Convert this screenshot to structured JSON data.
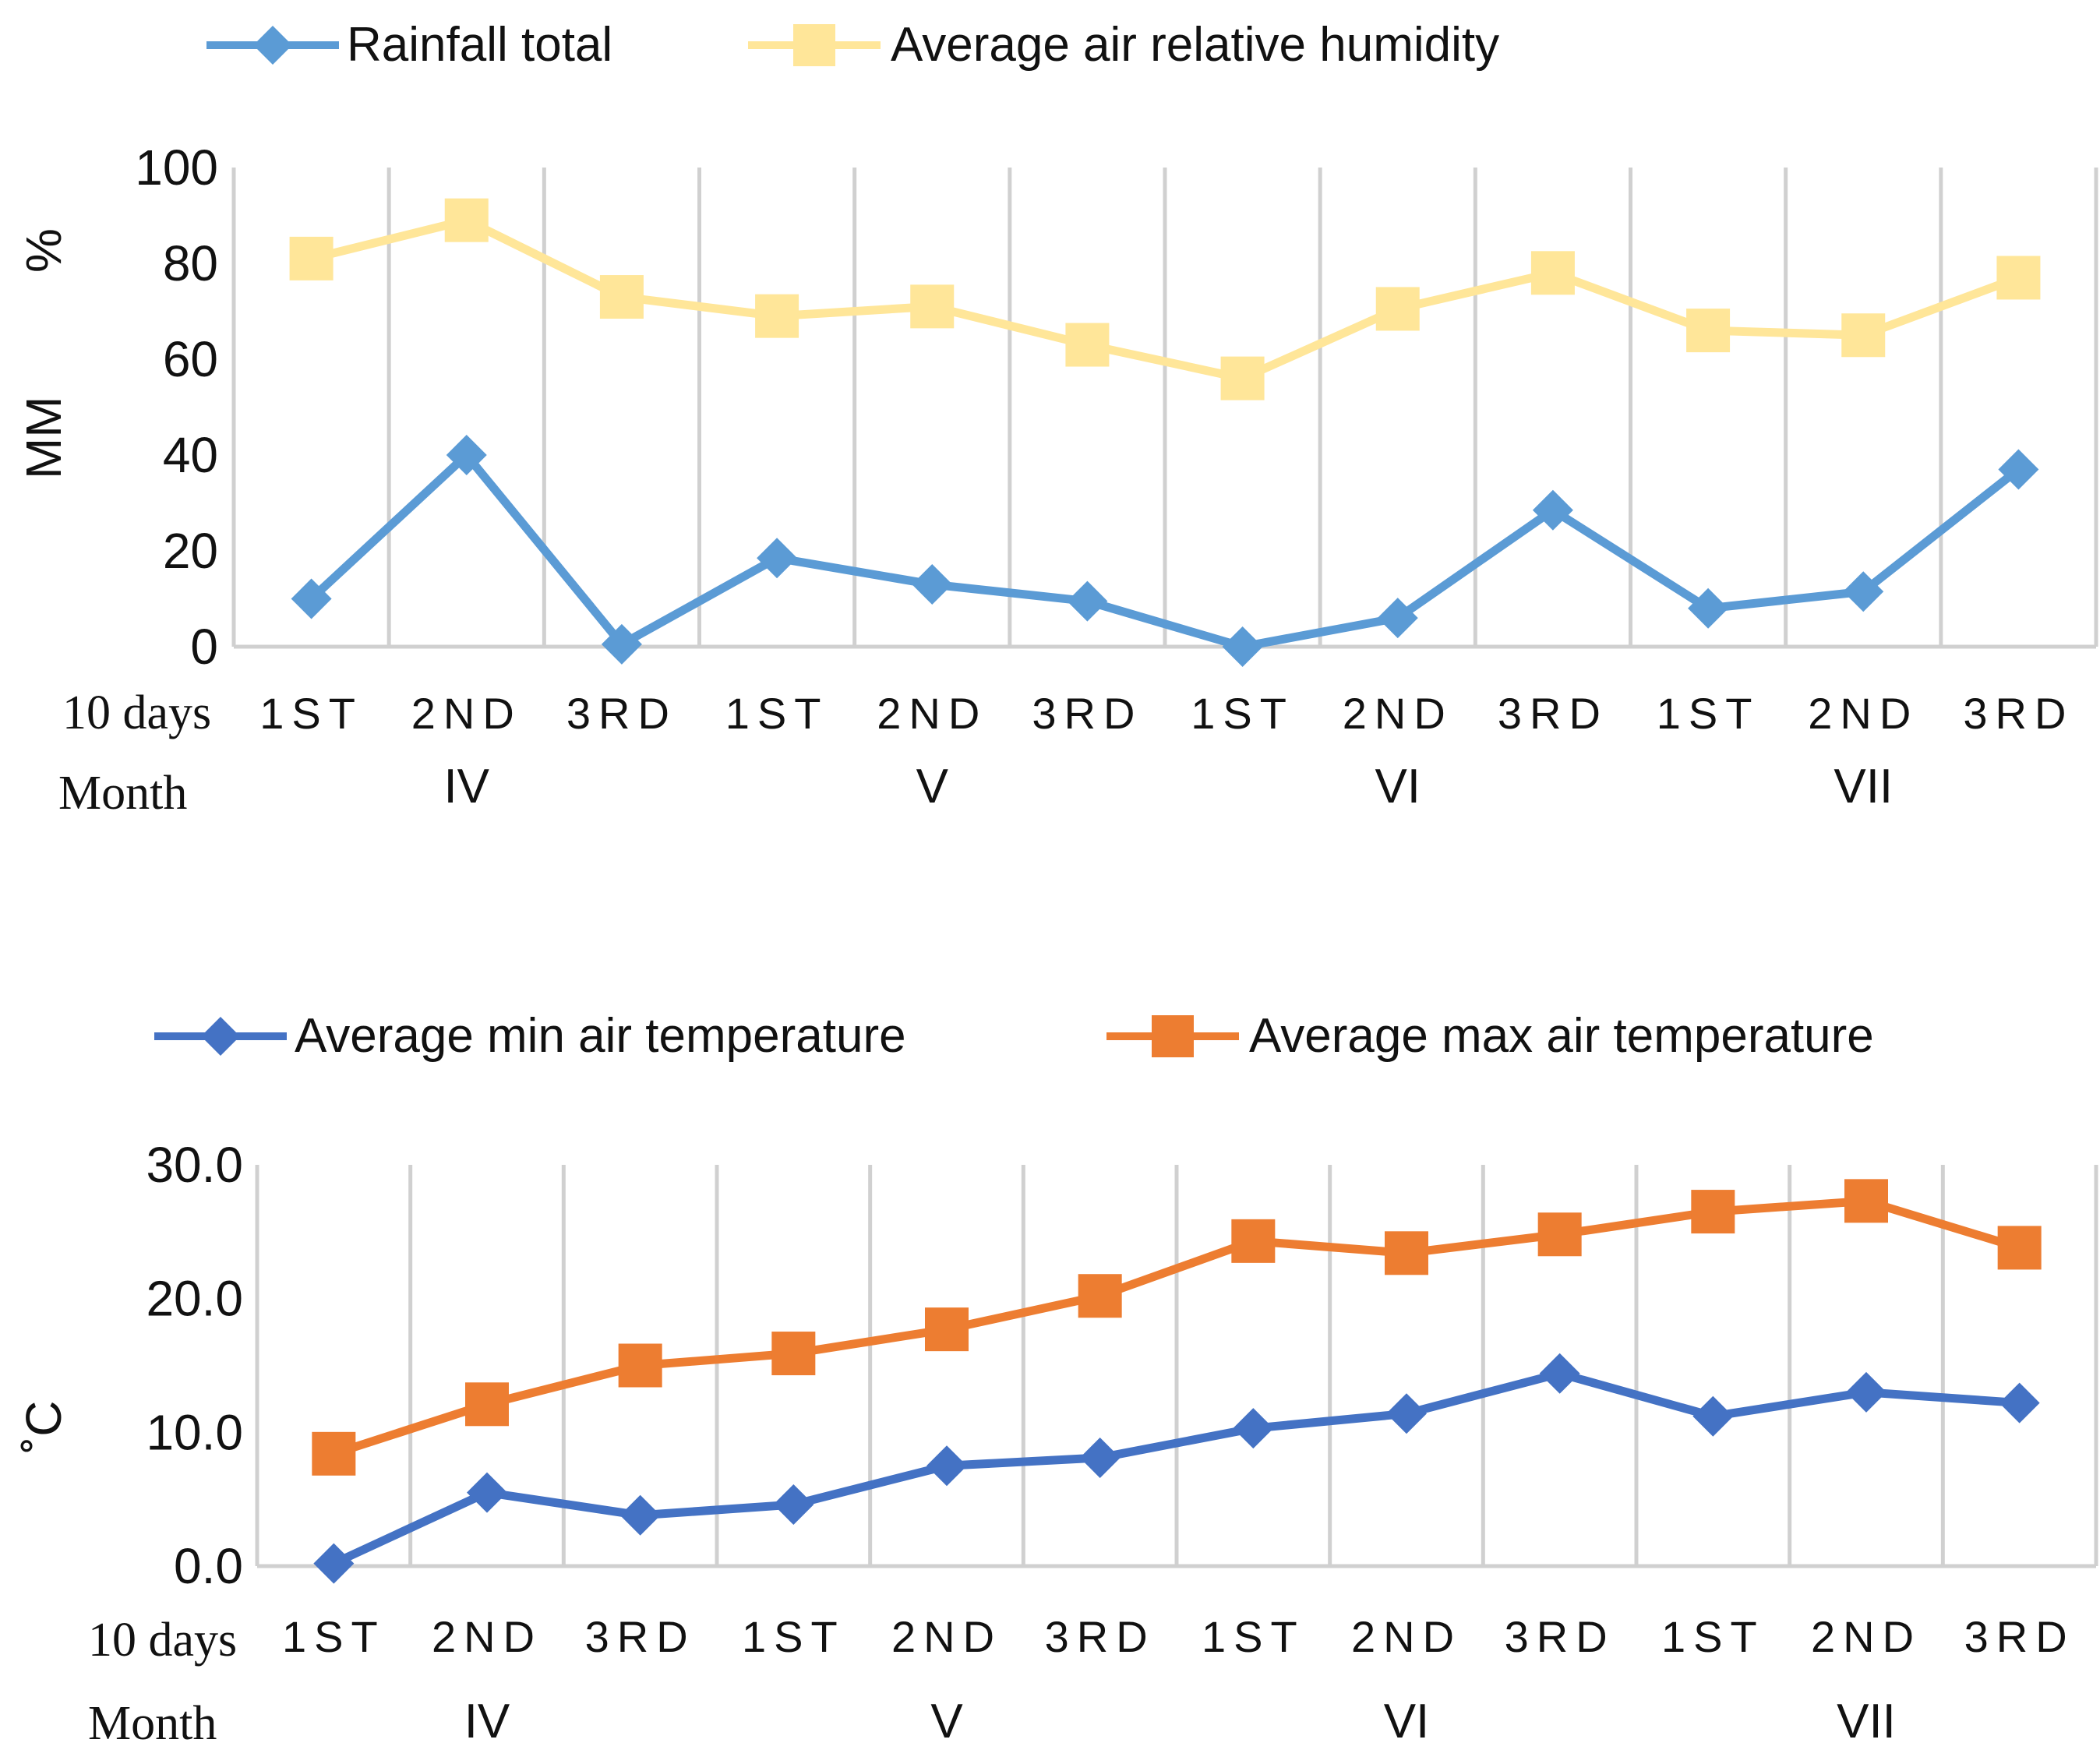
{
  "chart_data": [
    {
      "type": "line",
      "title": "",
      "categories": [
        "1ST",
        "2ND",
        "3RD",
        "1ST",
        "2ND",
        "3RD",
        "1ST",
        "2ND",
        "3RD",
        "1ST",
        "2ND",
        "3RD"
      ],
      "month_groups": [
        "IV",
        "V",
        "VI",
        "VII"
      ],
      "row_labels": {
        "ten_days": "10 days",
        "month": "Month"
      },
      "ylabel_left": "MM",
      "ylabel_right": "%",
      "ylim": [
        0,
        100
      ],
      "yticks": [
        "0",
        "20",
        "40",
        "60",
        "80",
        "100"
      ],
      "legend": "top",
      "grid": true,
      "series": [
        {
          "name": "Rainfall total",
          "color": "#5b9bd5",
          "marker": "diamond",
          "values": [
            10,
            40,
            0.5,
            18.5,
            13,
            9.5,
            0,
            6,
            28.5,
            8,
            11.5,
            37
          ]
        },
        {
          "name": "Average air relative humidity",
          "color": "#ffe699",
          "marker": "square",
          "values": [
            81,
            89,
            73,
            69,
            71,
            63,
            56,
            70.5,
            78,
            66,
            65,
            77
          ]
        }
      ]
    },
    {
      "type": "line",
      "title": "",
      "categories": [
        "1ST",
        "2ND",
        "3RD",
        "1ST",
        "2ND",
        "3RD",
        "1ST",
        "2ND",
        "3RD",
        "1ST",
        "2ND",
        "3RD"
      ],
      "month_groups": [
        "IV",
        "V",
        "VI",
        "VII"
      ],
      "row_labels": {
        "ten_days": "10 days",
        "month": "Month"
      },
      "ylabel": "˚C",
      "ylim": [
        0,
        30
      ],
      "yticks": [
        "0.0",
        "10.0",
        "20.0",
        "30.0"
      ],
      "legend": "top",
      "grid": true,
      "series": [
        {
          "name": "Average min air temperature",
          "color": "#4472c4",
          "marker": "diamond",
          "values": [
            0.2,
            5.5,
            3.8,
            4.6,
            7.5,
            8.1,
            10.3,
            11.4,
            14.4,
            11.2,
            13.0,
            12.2
          ]
        },
        {
          "name": "Average max air temperature",
          "color": "#ed7d31",
          "marker": "square",
          "values": [
            8.4,
            12.1,
            15.0,
            15.9,
            17.7,
            20.2,
            24.3,
            23.4,
            24.8,
            26.5,
            27.3,
            23.8
          ]
        }
      ]
    }
  ]
}
